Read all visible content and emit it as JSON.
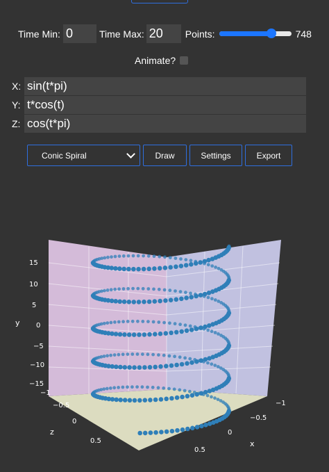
{
  "controls": {
    "time_min_label": "Time Min:",
    "time_min_value": "0",
    "time_max_label": "Time Max:",
    "time_max_value": "20",
    "points_label": "Points:",
    "points_value": "748",
    "points_slider_fraction": 0.73,
    "animate_label": "Animate?",
    "animate_checked": false
  },
  "expressions": {
    "x_label": "X:",
    "x_value": "sin(t*pi)",
    "y_label": "Y:",
    "y_value": "t*cos(t)",
    "z_label": "Z:",
    "z_value": "cos(t*pi)"
  },
  "toolbar": {
    "preset_selected": "Conic Spiral",
    "draw_label": "Draw",
    "settings_label": "Settings",
    "export_label": "Export"
  },
  "plot": {
    "marker_color": "#2f7fb8",
    "y_ticks": [
      "15",
      "10",
      "5",
      "0",
      "−5",
      "−10",
      "−15"
    ],
    "z_ticks": [
      "−1",
      "−0.5",
      "0",
      "0.5"
    ],
    "x_ticks": [
      "−1",
      "−0.5",
      "0",
      "0.5"
    ],
    "y_axis_title": "y",
    "z_axis_title": "z",
    "x_axis_title": "x"
  },
  "icons": {
    "select_arrow": "chevron-down-icon"
  }
}
